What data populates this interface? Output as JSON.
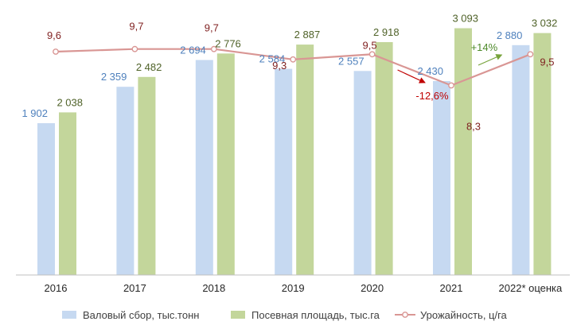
{
  "chart_data": {
    "type": "bar",
    "categories": [
      "2016",
      "2017",
      "2018",
      "2019",
      "2020",
      "2021",
      "2022* оценка"
    ],
    "series": [
      {
        "name": "Валовый сбор, тыс.тонн",
        "type": "bar",
        "values": [
          1902,
          2359,
          2694,
          2584,
          2557,
          2430,
          2880
        ],
        "labels": [
          "1 902",
          "2 359",
          "2 694",
          "2 584",
          "2 557",
          "2 430",
          "2 880"
        ],
        "color": "#c6d9f1"
      },
      {
        "name": "Посевная площадь, тыс.га",
        "type": "bar",
        "values": [
          2038,
          2482,
          2776,
          2887,
          2918,
          3093,
          3032
        ],
        "labels": [
          "2 038",
          "2 482",
          "2 776",
          "2 887",
          "2 918",
          "3 093",
          "3 032"
        ],
        "color": "#c3d69b"
      },
      {
        "name": "Урожайность, ц/га",
        "type": "line",
        "values": [
          9.6,
          9.7,
          9.7,
          9.3,
          9.5,
          8.3,
          9.5
        ],
        "labels": [
          "9,6",
          "9,7",
          "9,7",
          "9,3",
          "9,5",
          "8,3",
          "9,5"
        ],
        "color": "#d99694"
      }
    ],
    "annotations": [
      {
        "text": "-12,6%",
        "from": "2020",
        "to": "2021",
        "color": "#c00000"
      },
      {
        "text": "+14%",
        "from": "2021",
        "to": "2022* оценка",
        "color": "#77a33b"
      }
    ],
    "ylim": [
      0,
      3300
    ],
    "legend_position": "bottom",
    "grid": false
  }
}
